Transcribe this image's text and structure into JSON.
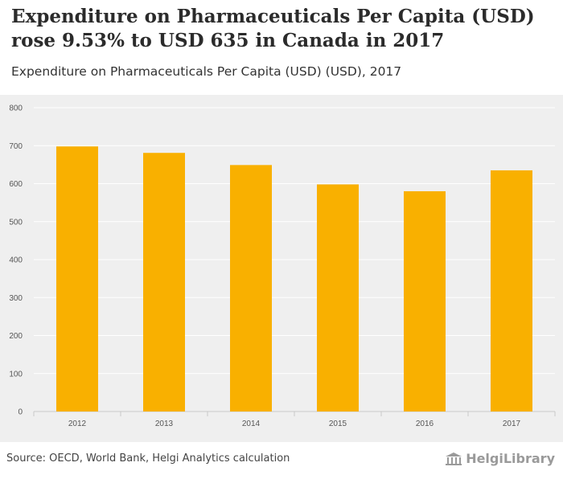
{
  "title": "Expenditure on Pharmaceuticals Per Capita (USD) rose 9.53% to USD 635 in Canada in 2017",
  "subtitle": "Expenditure on Pharmaceuticals Per Capita (USD) (USD), 2017",
  "source": "Source: OECD, World Bank, Helgi Analytics calculation",
  "brand": "HelgiLibrary",
  "colors": {
    "bar": "#f9b000",
    "plot_bg": "#efefef",
    "grid": "#ffffff"
  },
  "chart_data": {
    "type": "bar",
    "categories": [
      "2012",
      "2013",
      "2014",
      "2015",
      "2016",
      "2017"
    ],
    "values": [
      698,
      681,
      649,
      598,
      580,
      635
    ],
    "ylim": [
      0,
      800
    ],
    "yticks": [
      0,
      100,
      200,
      300,
      400,
      500,
      600,
      700,
      800
    ],
    "xlabel": "",
    "ylabel": "",
    "grid": true
  }
}
